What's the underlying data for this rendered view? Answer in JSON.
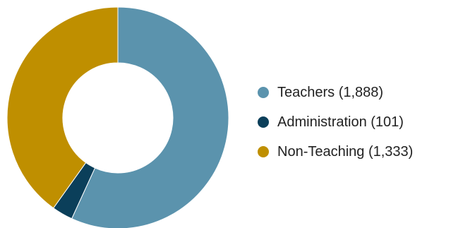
{
  "chart_data": {
    "type": "pie",
    "variant": "donut",
    "title": "",
    "categories": [
      "Teachers",
      "Administration",
      "Non-Teaching"
    ],
    "values": [
      1888,
      101,
      1333
    ],
    "colors": [
      "#5b93ad",
      "#0b3f5a",
      "#bf8f00"
    ],
    "legend": {
      "placement": "right",
      "items": [
        {
          "label": "Teachers (1,888)",
          "color": "#5b93ad"
        },
        {
          "label": "Administration (101)",
          "color": "#0b3f5a"
        },
        {
          "label": "Non-Teaching (1,333)",
          "color": "#bf8f00"
        }
      ]
    }
  }
}
